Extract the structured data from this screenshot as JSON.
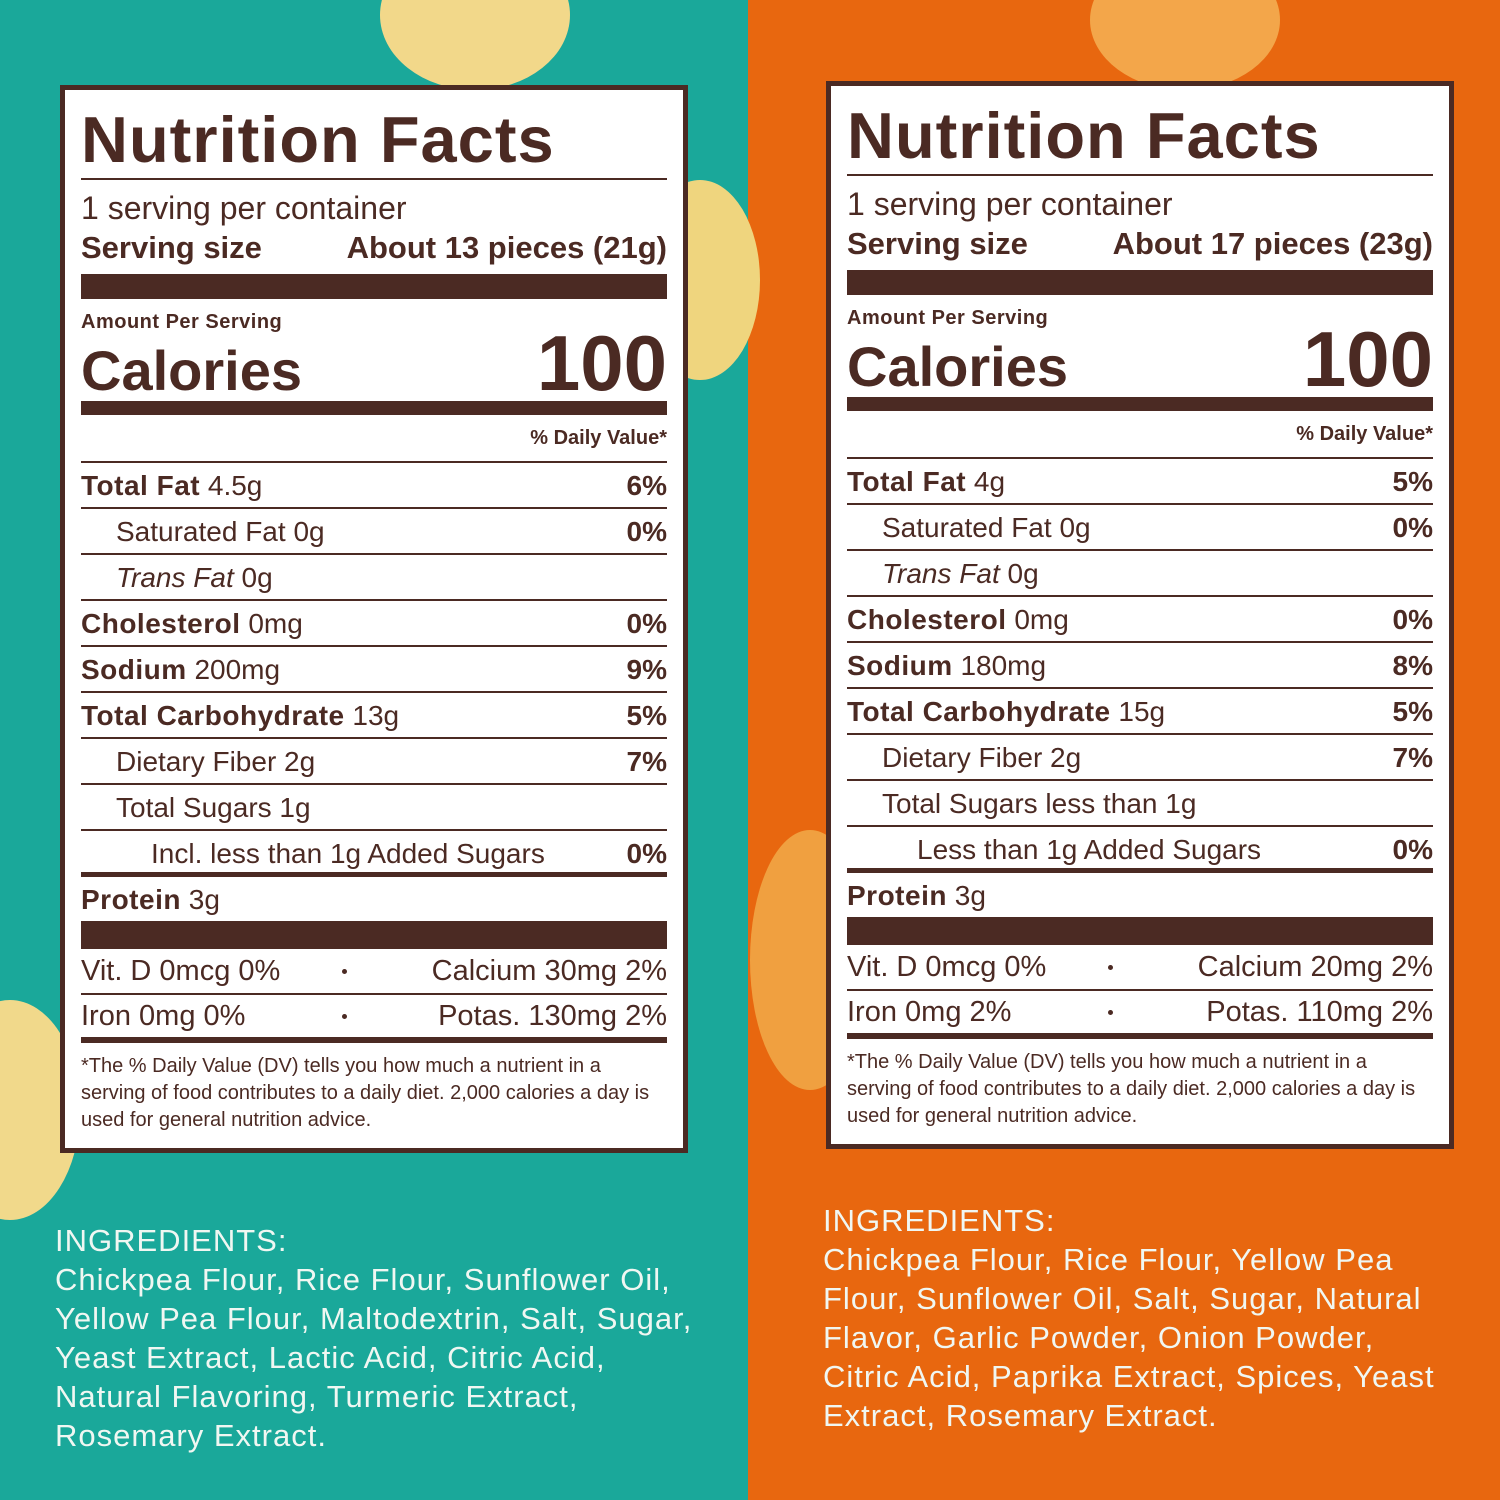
{
  "panels": [
    {
      "label": {
        "title": "Nutrition Facts",
        "servings": "1 serving per container",
        "serving_size_label": "Serving size",
        "serving_size_value": "About 13 pieces (21g)",
        "amount_per_serving": "Amount Per Serving",
        "calories_label": "Calories",
        "calories_value": "100",
        "daily_value_header": "% Daily Value*",
        "rows": [
          {
            "name": "Total Fat",
            "amount": "4.5g",
            "dv": "6%"
          },
          {
            "name": "Saturated Fat",
            "amount": "0g",
            "dv": "0%"
          },
          {
            "name": "Trans Fat",
            "amount": "0g"
          },
          {
            "name": "Cholesterol",
            "amount": "0mg",
            "dv": "0%"
          },
          {
            "name": "Sodium",
            "amount": "200mg",
            "dv": "9%"
          },
          {
            "name": "Total Carbohydrate",
            "amount": "13g",
            "dv": "5%"
          },
          {
            "name": "Dietary Fiber",
            "amount": "2g",
            "dv": "7%"
          },
          {
            "name": "Total Sugars",
            "amount": "1g"
          },
          {
            "name": "Incl. less than 1g Added Sugars",
            "dv": "0%"
          },
          {
            "name": "Protein",
            "amount": "3g"
          }
        ],
        "micronutrients": [
          [
            "Vit. D 0mcg 0%",
            "Calcium 30mg 2%"
          ],
          [
            "Iron 0mg 0%",
            "Potas. 130mg 2%"
          ]
        ],
        "footnote": "*The % Daily Value (DV) tells you how much a nutrient in a serving of food contributes to a daily diet. 2,000 calories a day is used for general nutrition advice."
      },
      "ingredients_heading": "INGREDIENTS:",
      "ingredients": "Chickpea Flour, Rice Flour, Sunflower Oil, Yellow Pea Flour, Maltodextrin, Salt, Sugar, Yeast Extract, Lactic Acid, Citric Acid, Natural Flavoring, Turmeric Extract, Rosemary Extract."
    },
    {
      "label": {
        "title": "Nutrition Facts",
        "servings": "1 serving per container",
        "serving_size_label": "Serving size",
        "serving_size_value": "About 17 pieces (23g)",
        "amount_per_serving": "Amount Per Serving",
        "calories_label": "Calories",
        "calories_value": "100",
        "daily_value_header": "% Daily Value*",
        "rows": [
          {
            "name": "Total Fat",
            "amount": "4g",
            "dv": "5%"
          },
          {
            "name": "Saturated Fat",
            "amount": "0g",
            "dv": "0%"
          },
          {
            "name": "Trans Fat",
            "amount": "0g"
          },
          {
            "name": "Cholesterol",
            "amount": "0mg",
            "dv": "0%"
          },
          {
            "name": "Sodium",
            "amount": "180mg",
            "dv": "8%"
          },
          {
            "name": "Total Carbohydrate",
            "amount": "15g",
            "dv": "5%"
          },
          {
            "name": "Dietary Fiber",
            "amount": "2g",
            "dv": "7%"
          },
          {
            "name": "Total Sugars",
            "amount": "less than 1g"
          },
          {
            "name": "Less than 1g Added Sugars",
            "dv": "0%"
          },
          {
            "name": "Protein",
            "amount": "3g"
          }
        ],
        "micronutrients": [
          [
            "Vit. D 0mcg 0%",
            "Calcium 20mg 2%"
          ],
          [
            "Iron 0mg 2%",
            "Potas. 110mg 2%"
          ]
        ],
        "footnote": "*The % Daily Value (DV) tells you how much a nutrient in a serving of food contributes to a daily diet. 2,000 calories a day is used for general nutrition advice."
      },
      "ingredients_heading": "INGREDIENTS:",
      "ingredients": "Chickpea Flour, Rice Flour, Yellow Pea Flour, Sunflower Oil, Salt, Sugar, Natural Flavor, Garlic Powder, Onion Powder, Citric Acid, Paprika Extract, Spices, Yeast Extract, Rosemary Extract."
    }
  ]
}
